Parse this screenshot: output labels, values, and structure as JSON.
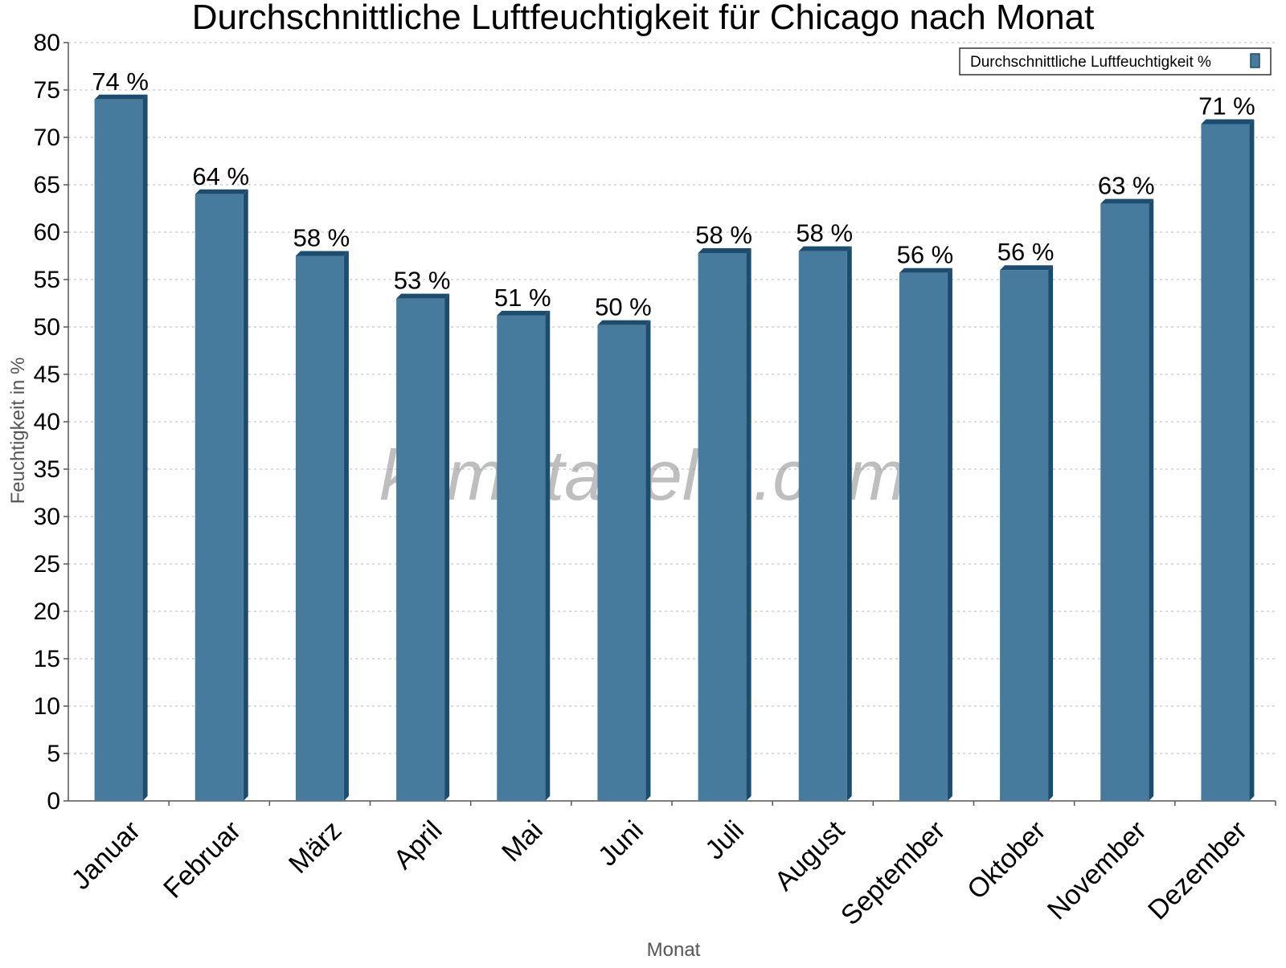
{
  "chart_data": {
    "type": "bar",
    "title": "Durchschnittliche Luftfeuchtigkeit für Chicago nach Monat",
    "xlabel": "Monat",
    "ylabel": "Feuchtigkeit in %",
    "categories": [
      "Januar",
      "Februar",
      "März",
      "April",
      "Mai",
      "Juni",
      "Juli",
      "August",
      "September",
      "Oktober",
      "November",
      "Dezember"
    ],
    "series": [
      {
        "name": "Durchschnittliche Luftfeuchtigkeit %",
        "values": [
          74,
          64,
          57.5,
          53,
          51.2,
          50.2,
          57.8,
          58,
          55.7,
          56,
          63,
          71.4
        ],
        "labels": [
          "74 %",
          "64 %",
          "58 %",
          "53 %",
          "51 %",
          "50 %",
          "58 %",
          "58 %",
          "56 %",
          "56 %",
          "63 %",
          "71 %"
        ]
      }
    ],
    "ylim": [
      0,
      80
    ],
    "yticks": [
      0,
      5,
      10,
      15,
      20,
      25,
      30,
      35,
      40,
      45,
      50,
      55,
      60,
      65,
      70,
      75,
      80
    ],
    "grid": true,
    "legend_position": "top-right",
    "colors": {
      "bar": "#467b9e",
      "bar_dark": "#1c4d6e",
      "grid": "#c8c8c8",
      "axis": "#555555"
    },
    "watermark": "klimatabelle.com"
  }
}
